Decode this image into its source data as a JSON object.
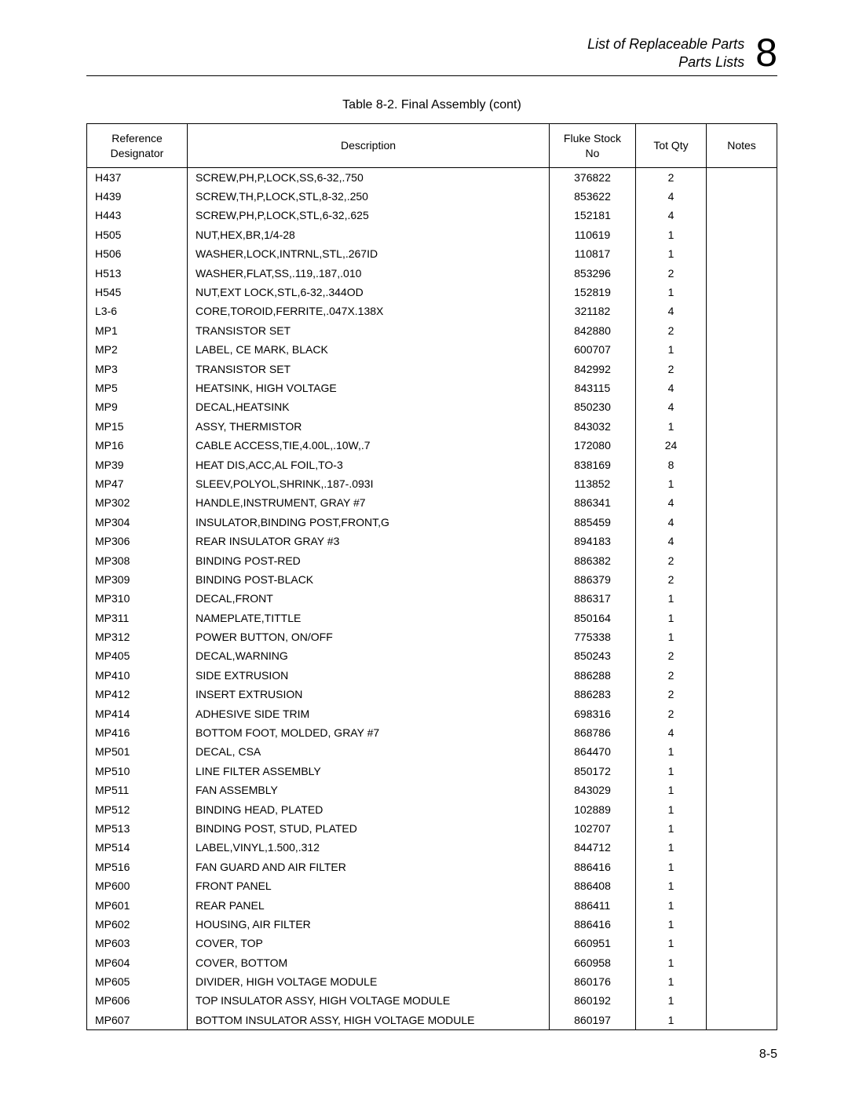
{
  "header": {
    "line1": "List of Replaceable Parts",
    "line2": "Parts Lists",
    "chapter_number": "8"
  },
  "table": {
    "caption": "Table 8-2. Final Assembly (cont)",
    "columns": [
      "Reference\nDesignator",
      "Description",
      "Fluke Stock\nNo",
      "Tot Qty",
      "Notes"
    ],
    "rows": [
      {
        "ref": "H437",
        "desc": "SCREW,PH,P,LOCK,SS,6-32,.750",
        "stock": "376822",
        "qty": "2",
        "notes": ""
      },
      {
        "ref": "H439",
        "desc": "SCREW,TH,P,LOCK,STL,8-32,.250",
        "stock": "853622",
        "qty": "4",
        "notes": ""
      },
      {
        "ref": "H443",
        "desc": "SCREW,PH,P,LOCK,STL,6-32,.625",
        "stock": "152181",
        "qty": "4",
        "notes": ""
      },
      {
        "ref": "H505",
        "desc": "NUT,HEX,BR,1/4-28",
        "stock": "110619",
        "qty": "1",
        "notes": ""
      },
      {
        "ref": "H506",
        "desc": "WASHER,LOCK,INTRNL,STL,.267ID",
        "stock": "110817",
        "qty": "1",
        "notes": ""
      },
      {
        "ref": "H513",
        "desc": "WASHER,FLAT,SS,.119,.187,.010",
        "stock": "853296",
        "qty": "2",
        "notes": ""
      },
      {
        "ref": "H545",
        "desc": "NUT,EXT LOCK,STL,6-32,.344OD",
        "stock": "152819",
        "qty": "1",
        "notes": ""
      },
      {
        "ref": "L3-6",
        "desc": "CORE,TOROID,FERRITE,.047X.138X",
        "stock": "321182",
        "qty": "4",
        "notes": ""
      },
      {
        "ref": "MP1",
        "desc": "TRANSISTOR SET",
        "stock": "842880",
        "qty": "2",
        "notes": ""
      },
      {
        "ref": "MP2",
        "desc": "LABEL, CE MARK, BLACK",
        "stock": "600707",
        "qty": "1",
        "notes": ""
      },
      {
        "ref": "MP3",
        "desc": "TRANSISTOR SET",
        "stock": "842992",
        "qty": "2",
        "notes": ""
      },
      {
        "ref": "MP5",
        "desc": "HEATSINK, HIGH VOLTAGE",
        "stock": "843115",
        "qty": "4",
        "notes": ""
      },
      {
        "ref": "MP9",
        "desc": "DECAL,HEATSINK",
        "stock": "850230",
        "qty": "4",
        "notes": ""
      },
      {
        "ref": "MP15",
        "desc": "ASSY, THERMISTOR",
        "stock": "843032",
        "qty": "1",
        "notes": ""
      },
      {
        "ref": "MP16",
        "desc": "CABLE ACCESS,TIE,4.00L,.10W,.7",
        "stock": "172080",
        "qty": "24",
        "notes": ""
      },
      {
        "ref": "MP39",
        "desc": "HEAT DIS,ACC,AL FOIL,TO-3",
        "stock": "838169",
        "qty": "8",
        "notes": ""
      },
      {
        "ref": "MP47",
        "desc": "SLEEV,POLYOL,SHRINK,.187-.093I",
        "stock": "113852",
        "qty": "1",
        "notes": ""
      },
      {
        "ref": "MP302",
        "desc": "HANDLE,INSTRUMENT, GRAY #7",
        "stock": "886341",
        "qty": "4",
        "notes": ""
      },
      {
        "ref": "MP304",
        "desc": "INSULATOR,BINDING POST,FRONT,G",
        "stock": "885459",
        "qty": "4",
        "notes": ""
      },
      {
        "ref": "MP306",
        "desc": "REAR INSULATOR GRAY #3",
        "stock": "894183",
        "qty": "4",
        "notes": ""
      },
      {
        "ref": "MP308",
        "desc": "BINDING POST-RED",
        "stock": "886382",
        "qty": "2",
        "notes": ""
      },
      {
        "ref": "MP309",
        "desc": "BINDING POST-BLACK",
        "stock": "886379",
        "qty": "2",
        "notes": ""
      },
      {
        "ref": "MP310",
        "desc": "DECAL,FRONT",
        "stock": "886317",
        "qty": "1",
        "notes": ""
      },
      {
        "ref": "MP311",
        "desc": "NAMEPLATE,TITTLE",
        "stock": "850164",
        "qty": "1",
        "notes": ""
      },
      {
        "ref": "MP312",
        "desc": "POWER BUTTON, ON/OFF",
        "stock": "775338",
        "qty": "1",
        "notes": ""
      },
      {
        "ref": "MP405",
        "desc": "DECAL,WARNING",
        "stock": "850243",
        "qty": "2",
        "notes": ""
      },
      {
        "ref": "MP410",
        "desc": "SIDE EXTRUSION",
        "stock": "886288",
        "qty": "2",
        "notes": ""
      },
      {
        "ref": "MP412",
        "desc": "INSERT EXTRUSION",
        "stock": "886283",
        "qty": "2",
        "notes": ""
      },
      {
        "ref": "MP414",
        "desc": "ADHESIVE SIDE TRIM",
        "stock": "698316",
        "qty": "2",
        "notes": ""
      },
      {
        "ref": "MP416",
        "desc": "BOTTOM FOOT, MOLDED, GRAY #7",
        "stock": "868786",
        "qty": "4",
        "notes": ""
      },
      {
        "ref": "MP501",
        "desc": "DECAL, CSA",
        "stock": "864470",
        "qty": "1",
        "notes": ""
      },
      {
        "ref": "MP510",
        "desc": "LINE FILTER ASSEMBLY",
        "stock": "850172",
        "qty": "1",
        "notes": ""
      },
      {
        "ref": "MP511",
        "desc": "FAN ASSEMBLY",
        "stock": "843029",
        "qty": "1",
        "notes": ""
      },
      {
        "ref": "MP512",
        "desc": "BINDING HEAD, PLATED",
        "stock": "102889",
        "qty": "1",
        "notes": ""
      },
      {
        "ref": "MP513",
        "desc": "BINDING POST, STUD, PLATED",
        "stock": "102707",
        "qty": "1",
        "notes": ""
      },
      {
        "ref": "MP514",
        "desc": "LABEL,VINYL,1.500,.312",
        "stock": "844712",
        "qty": "1",
        "notes": ""
      },
      {
        "ref": "MP516",
        "desc": "FAN GUARD AND AIR FILTER",
        "stock": "886416",
        "qty": "1",
        "notes": ""
      },
      {
        "ref": "MP600",
        "desc": "FRONT PANEL",
        "stock": "886408",
        "qty": "1",
        "notes": ""
      },
      {
        "ref": "MP601",
        "desc": "REAR PANEL",
        "stock": "886411",
        "qty": "1",
        "notes": ""
      },
      {
        "ref": "MP602",
        "desc": "HOUSING, AIR FILTER",
        "stock": "886416",
        "qty": "1",
        "notes": ""
      },
      {
        "ref": "MP603",
        "desc": "COVER, TOP",
        "stock": "660951",
        "qty": "1",
        "notes": ""
      },
      {
        "ref": "MP604",
        "desc": "COVER, BOTTOM",
        "stock": "660958",
        "qty": "1",
        "notes": ""
      },
      {
        "ref": "MP605",
        "desc": "DIVIDER, HIGH VOLTAGE MODULE",
        "stock": "860176",
        "qty": "1",
        "notes": ""
      },
      {
        "ref": "MP606",
        "desc": "TOP INSULATOR ASSY, HIGH VOLTAGE MODULE",
        "stock": "860192",
        "qty": "1",
        "notes": ""
      },
      {
        "ref": "MP607",
        "desc": "BOTTOM INSULATOR ASSY, HIGH VOLTAGE MODULE",
        "stock": "860197",
        "qty": "1",
        "notes": ""
      }
    ]
  },
  "footer": {
    "page_number": "8-5"
  }
}
